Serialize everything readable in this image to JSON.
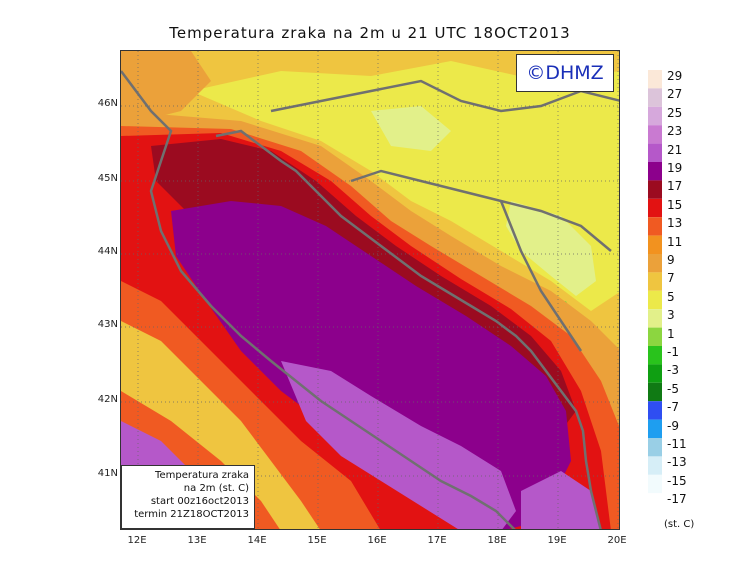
{
  "title": "Temperatura zraka na 2m u 21 UTC 18OCT2013",
  "logo": "©DHMZ",
  "info": {
    "line1": "Temperatura zraka",
    "line2": "na 2m (st. C)",
    "line3": "start 00z16oct2013",
    "line4": "termin 21Z18OCT2013"
  },
  "latitude_labels": [
    "46N",
    "45N",
    "44N",
    "43N",
    "42N",
    "41N"
  ],
  "longitude_labels": [
    "12E",
    "13E",
    "14E",
    "15E",
    "16E",
    "17E",
    "18E",
    "19E",
    "20E"
  ],
  "legend": {
    "unit": "(st. C)",
    "levels": [
      "29",
      "27",
      "25",
      "23",
      "21",
      "19",
      "17",
      "15",
      "13",
      "11",
      "9",
      "7",
      "5",
      "3",
      "1",
      "-1",
      "-3",
      "-5",
      "-7",
      "-9",
      "-11",
      "-13",
      "-15",
      "-17"
    ],
    "colors": [
      "#fbe8d8",
      "#dcc4da",
      "#d6a8dc",
      "#c97ad1",
      "#b558c9",
      "#8c008c",
      "#9b0b20",
      "#e21212",
      "#f05a22",
      "#f2921f",
      "#eba13a",
      "#efc540",
      "#ece94a",
      "#e2f08a",
      "#8cd640",
      "#29c31c",
      "#0f9f12",
      "#107a14",
      "#2f4ef2",
      "#1e9ef0",
      "#99cfe6",
      "#d6eef7",
      "#f2fbfd",
      "#ffffff"
    ]
  },
  "zone_colors": {
    "inland_cool": "#ece94a",
    "inland_mild": "#efc540",
    "inland_warm": "#eba13a",
    "coast_warm": "#f05a22",
    "coast_hot": "#e21212",
    "coast_deep": "#9b0b20",
    "sea_core": "#8c008c",
    "sea_south": "#b558c9",
    "cold_patch": "#e2f08a",
    "green_patch": "#8cd640",
    "coastline": "#707070"
  }
}
